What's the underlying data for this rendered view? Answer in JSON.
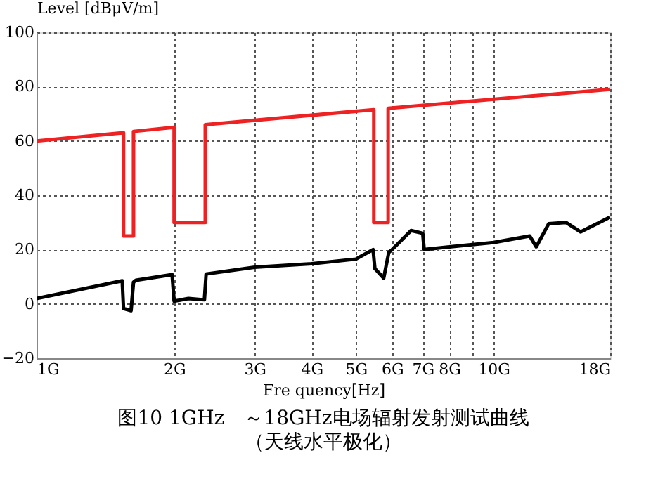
{
  "chart_data": {
    "type": "line",
    "title": "图10 1GHz　～18GHz电场辐射发射测试曲线",
    "subtitle": "（天线水平极化）",
    "xlabel": "Fre quency[Hz]",
    "ylabel": "Level [dBμV/m]",
    "log": "x",
    "xlim": [
      1,
      18
    ],
    "xticks": [
      {
        "value": 1,
        "label": "1G"
      },
      {
        "value": 2,
        "label": "2G"
      },
      {
        "value": 3,
        "label": "3G"
      },
      {
        "value": 4,
        "label": "4G"
      },
      {
        "value": 5,
        "label": "5G"
      },
      {
        "value": 6,
        "label": "6G"
      },
      {
        "value": 7,
        "label": "7G"
      },
      {
        "value": 8,
        "label": "8G"
      },
      {
        "value": 9,
        "label": null
      },
      {
        "value": 10,
        "label": "10G"
      },
      {
        "value": 18,
        "label": "18G"
      }
    ],
    "ylim": [
      -20,
      100
    ],
    "yticks": [
      -20,
      0,
      20,
      40,
      60,
      80,
      100
    ],
    "grid": true,
    "legend": false,
    "marker": "none",
    "line_style": "solid",
    "series": [
      {
        "color": "#ee2222",
        "x": [
          1,
          1.55,
          1.55,
          1.63,
          1.63,
          2.0,
          2.0,
          2.34,
          2.34,
          5.47,
          5.47,
          5.88,
          5.88,
          18
        ],
        "values": [
          60,
          63,
          25,
          25,
          63.5,
          65,
          30,
          30,
          66,
          71.5,
          30,
          30,
          72,
          79
        ]
      },
      {
        "color": "#000000",
        "x": [
          1,
          1.54,
          1.55,
          1.61,
          1.63,
          1.65,
          1.98,
          2.0,
          2.15,
          2.33,
          2.35,
          3,
          4,
          5,
          5.45,
          5.5,
          5.75,
          5.9,
          6,
          6.6,
          7,
          7.05,
          8,
          10,
          12,
          12.4,
          13.2,
          14.4,
          15.5,
          16.6,
          18
        ],
        "values": [
          2,
          8.5,
          -1.7,
          -2.5,
          8,
          8.7,
          10.8,
          1,
          2,
          1.5,
          11,
          13.5,
          14.8,
          16.5,
          20,
          13,
          9.5,
          19,
          20,
          27,
          26,
          20,
          21,
          22.6,
          25,
          21,
          29.5,
          30,
          26.5,
          29,
          32
        ]
      }
    ]
  }
}
